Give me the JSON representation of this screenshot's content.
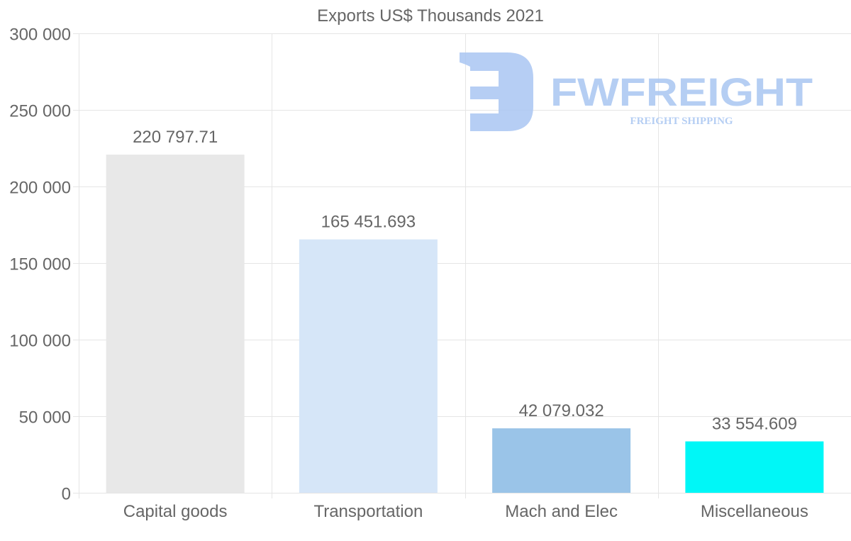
{
  "chart_data": {
    "type": "bar",
    "title": "Exports US$ Thousands 2021",
    "xlabel": "",
    "ylabel": "",
    "categories": [
      "Capital goods",
      "Transportation",
      "Mach and Elec",
      "Miscellaneous"
    ],
    "values": [
      220797.71,
      165451.693,
      42079.032,
      33554.609
    ],
    "value_labels": [
      "220 797.71",
      "165 451.693",
      "42 079.032",
      "33 554.609"
    ],
    "colors": [
      "#e8e8e8",
      "#d6e6f8",
      "#9ac4e8",
      "#00f7f7"
    ],
    "ylim": [
      0,
      300000
    ],
    "yticks": [
      0,
      50000,
      100000,
      150000,
      200000,
      250000,
      300000
    ],
    "ytick_labels": [
      "0",
      "50 000",
      "100 000",
      "150 000",
      "200 000",
      "250 000",
      "300 000"
    ],
    "grid": true,
    "legend": "none"
  },
  "watermark": {
    "brand": "FWFREIGHT",
    "tagline": "FREIGHT SHIPPING",
    "color": "#a9c6f2"
  }
}
